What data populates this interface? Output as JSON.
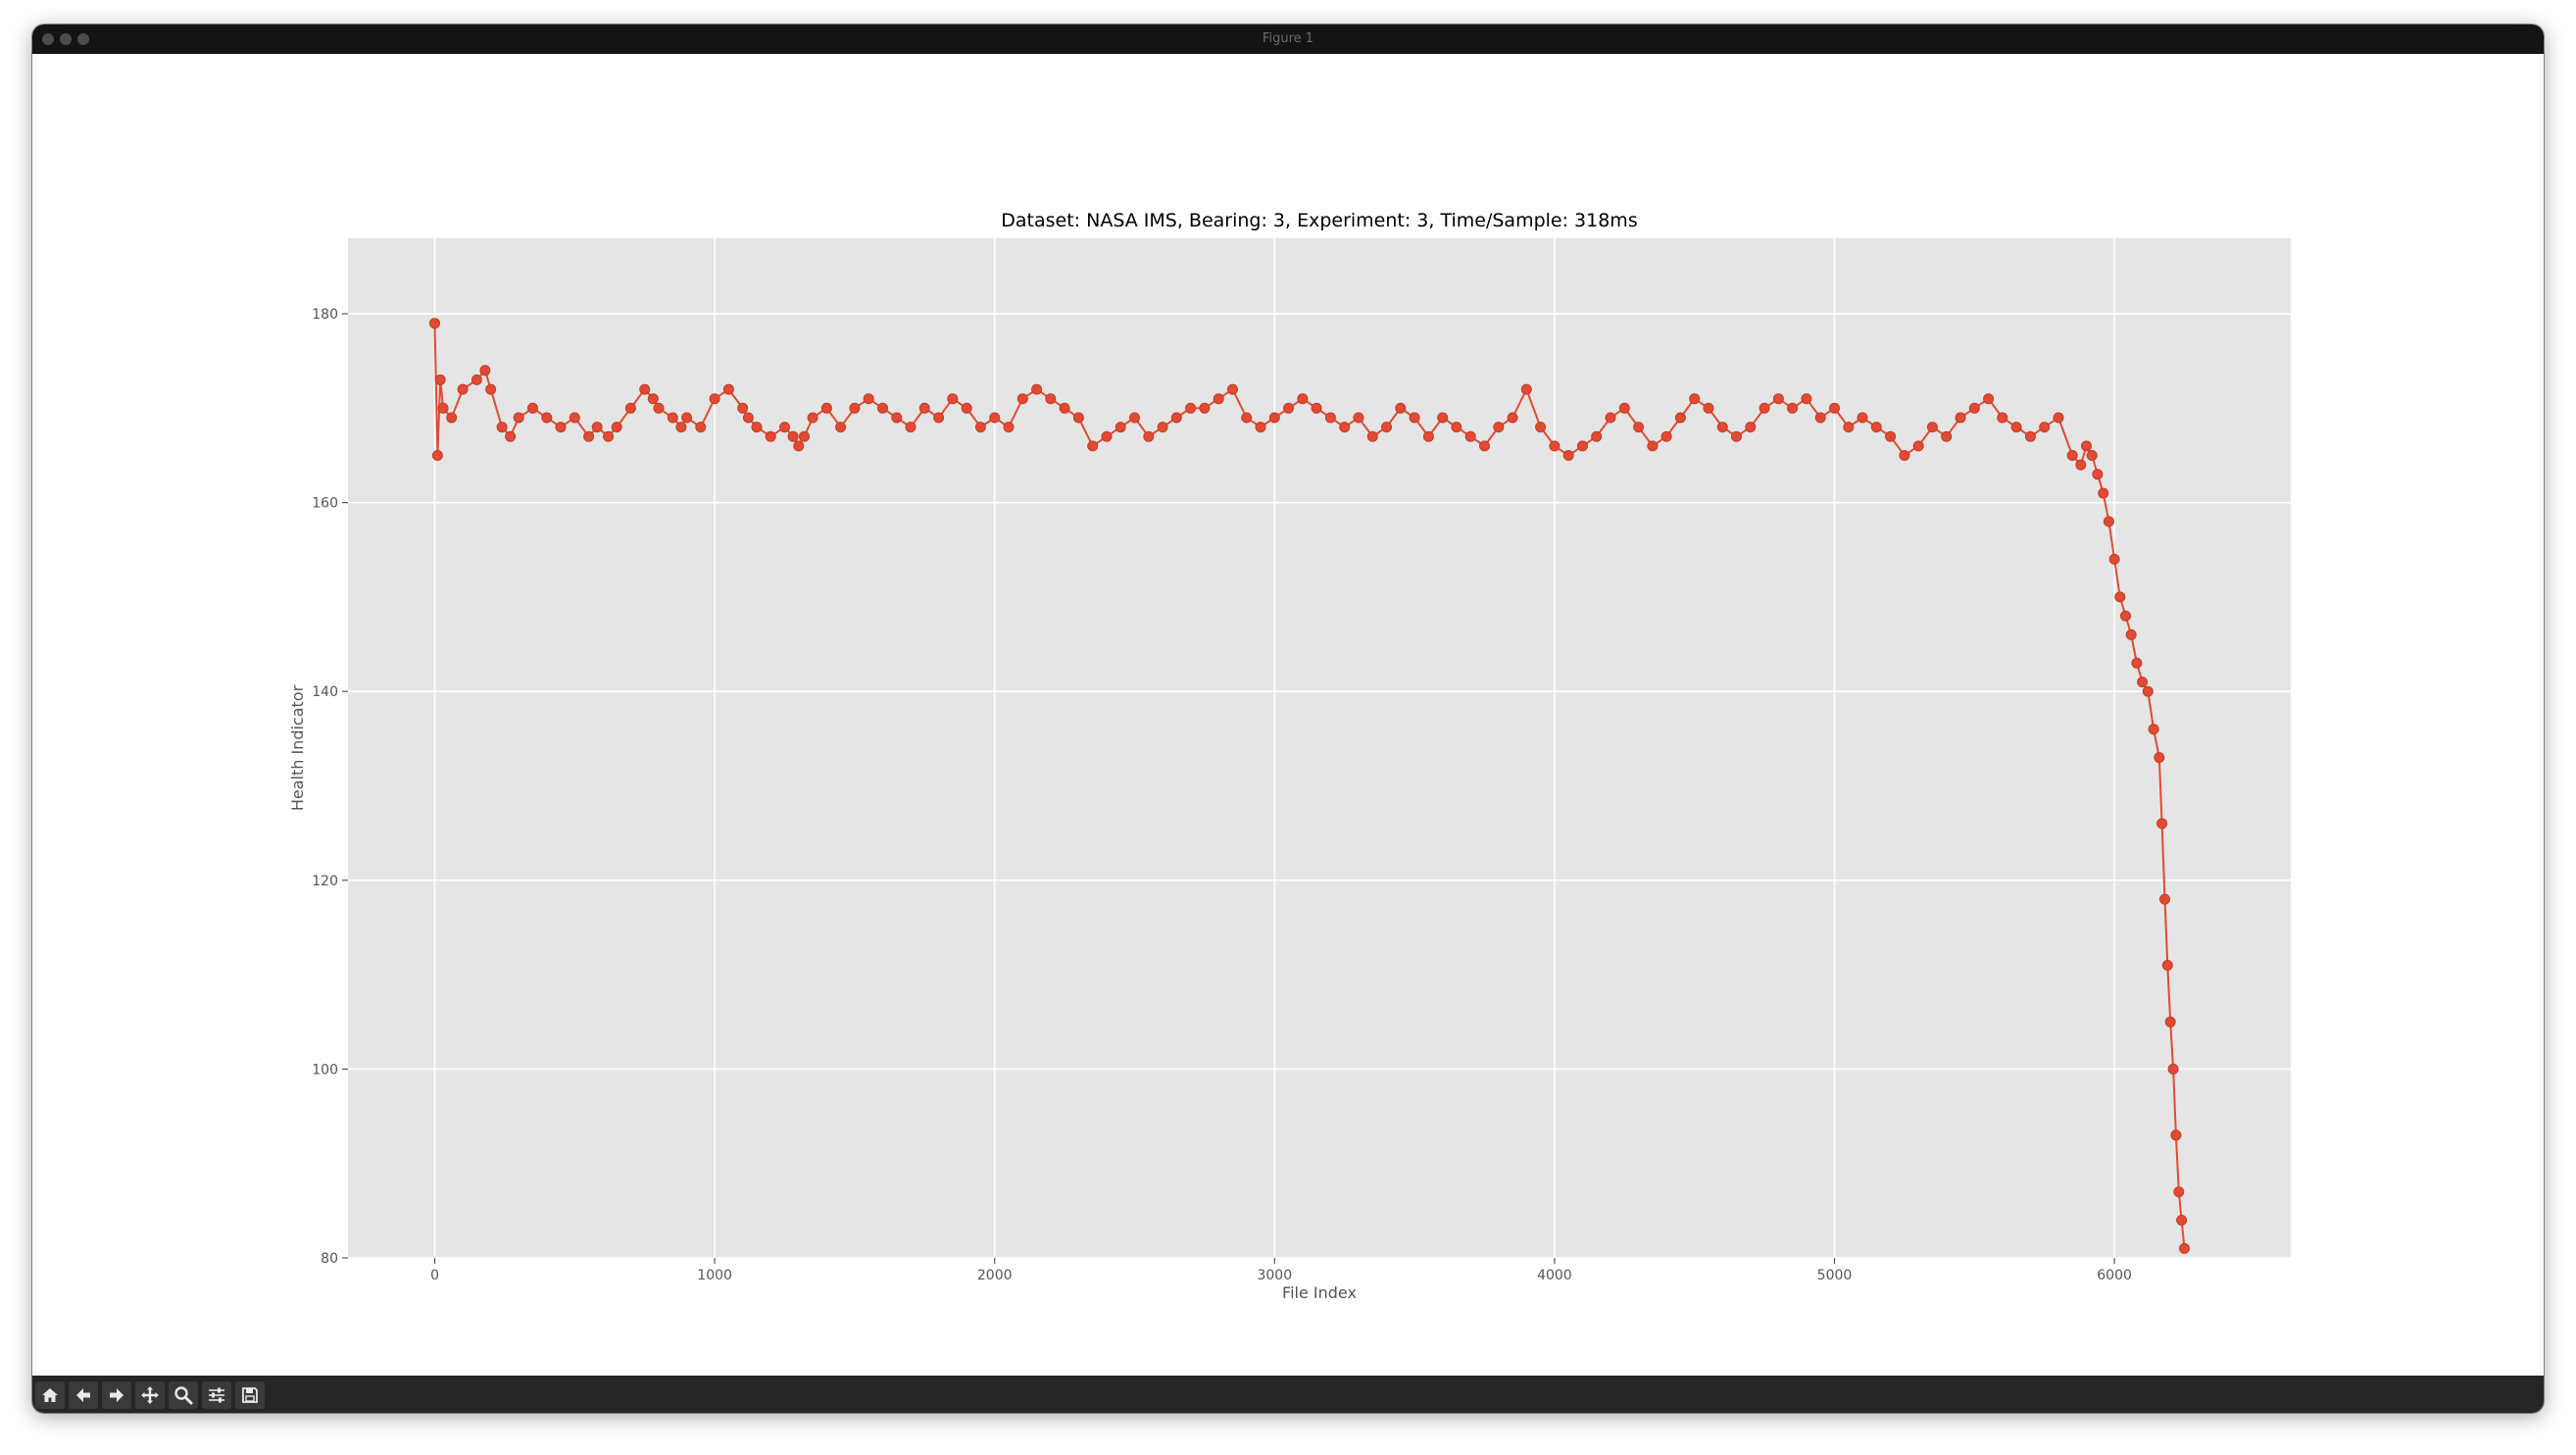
{
  "window": {
    "title": "Figure 1"
  },
  "toolbar": {
    "buttons": [
      {
        "name": "home",
        "icon": "home-icon"
      },
      {
        "name": "back",
        "icon": "arrow-left-icon"
      },
      {
        "name": "forward",
        "icon": "arrow-right-icon"
      },
      {
        "name": "pan",
        "icon": "move-icon"
      },
      {
        "name": "zoom",
        "icon": "search-icon"
      },
      {
        "name": "configure",
        "icon": "sliders-icon"
      },
      {
        "name": "save",
        "icon": "save-icon"
      }
    ]
  },
  "chart_data": {
    "type": "line",
    "title": "Dataset: NASA IMS, Bearing: 3, Experiment: 3, Time/Sample: 318ms",
    "xlabel": "File Index",
    "ylabel": "Health Indicator",
    "xlim": [
      -310,
      6630
    ],
    "ylim": [
      80,
      188
    ],
    "xticks": [
      0,
      1000,
      2000,
      3000,
      4000,
      5000,
      6000
    ],
    "yticks": [
      80,
      100,
      120,
      140,
      160,
      180
    ],
    "grid": true,
    "marker": "circle",
    "colors": {
      "series": "#e24a33",
      "axes_bg": "#e5e5e5",
      "grid": "#ffffff"
    },
    "series": [
      {
        "x": [
          0,
          10,
          20,
          30,
          60,
          100,
          150,
          180,
          200,
          240,
          270,
          300,
          350,
          400,
          450,
          500,
          550,
          580,
          620,
          650,
          700,
          750,
          780,
          800,
          850,
          880,
          900,
          950,
          1000,
          1050,
          1100,
          1120,
          1150,
          1200,
          1250,
          1280,
          1300,
          1320,
          1350,
          1400,
          1450,
          1500,
          1550,
          1600,
          1650,
          1700,
          1750,
          1800,
          1850,
          1900,
          1950,
          2000,
          2050,
          2100,
          2150,
          2200,
          2250,
          2300,
          2350,
          2400,
          2450,
          2500,
          2550,
          2600,
          2650,
          2700,
          2750,
          2800,
          2850,
          2900,
          2950,
          3000,
          3050,
          3100,
          3150,
          3200,
          3250,
          3300,
          3350,
          3400,
          3450,
          3500,
          3550,
          3600,
          3650,
          3700,
          3750,
          3800,
          3850,
          3900,
          3950,
          4000,
          4050,
          4100,
          4150,
          4200,
          4250,
          4300,
          4350,
          4400,
          4450,
          4500,
          4550,
          4600,
          4650,
          4700,
          4750,
          4800,
          4850,
          4900,
          4950,
          5000,
          5050,
          5100,
          5150,
          5200,
          5250,
          5300,
          5350,
          5400,
          5450,
          5500,
          5550,
          5600,
          5650,
          5700,
          5750,
          5800,
          5850,
          5880,
          5900,
          5920,
          5940,
          5960,
          5980,
          6000,
          6020,
          6040,
          6060,
          6080,
          6100,
          6120,
          6140,
          6160,
          6170,
          6180,
          6190,
          6200,
          6210,
          6220,
          6230,
          6240,
          6250
        ],
        "values": [
          179,
          165,
          173,
          170,
          169,
          172,
          173,
          174,
          172,
          168,
          167,
          169,
          170,
          169,
          168,
          169,
          167,
          168,
          167,
          168,
          170,
          172,
          171,
          170,
          169,
          168,
          169,
          168,
          171,
          172,
          170,
          169,
          168,
          167,
          168,
          167,
          166,
          167,
          169,
          170,
          168,
          170,
          171,
          170,
          169,
          168,
          170,
          169,
          171,
          170,
          168,
          169,
          168,
          171,
          172,
          171,
          170,
          169,
          166,
          167,
          168,
          169,
          167,
          168,
          169,
          170,
          170,
          171,
          172,
          169,
          168,
          169,
          170,
          171,
          170,
          169,
          168,
          169,
          167,
          168,
          170,
          169,
          167,
          169,
          168,
          167,
          166,
          168,
          169,
          172,
          168,
          166,
          165,
          166,
          167,
          169,
          170,
          168,
          166,
          167,
          169,
          171,
          170,
          168,
          167,
          168,
          170,
          171,
          170,
          171,
          169,
          170,
          168,
          169,
          168,
          167,
          165,
          166,
          168,
          167,
          169,
          170,
          171,
          169,
          168,
          167,
          168,
          169,
          165,
          164,
          166,
          165,
          163,
          161,
          158,
          154,
          150,
          148,
          146,
          143,
          141,
          140,
          136,
          133,
          126,
          118,
          111,
          105,
          100,
          93,
          87,
          84,
          81
        ]
      }
    ]
  }
}
